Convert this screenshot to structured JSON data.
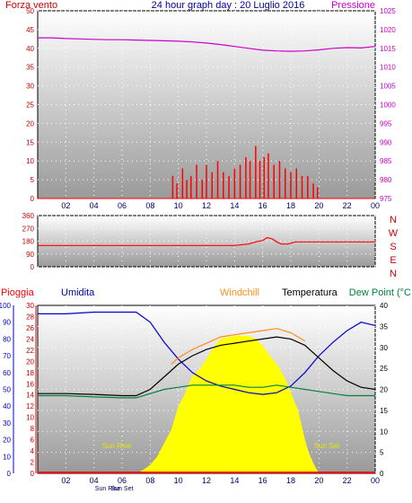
{
  "header": {
    "left_label": "Forza vento",
    "title": "24 hour graph day : 20 Luglio 2016",
    "right_label": "Pressione"
  },
  "middle": {
    "compass": [
      "N",
      "W",
      "S",
      "E",
      "N"
    ]
  },
  "bottom_header": {
    "pioggia": "Pioggia",
    "umidita": "Umidita",
    "windchill": "Windchill",
    "temperatura": "Temperatura",
    "dewpoint": "Dew Point (°C"
  },
  "colors": {
    "wind": "#ff0000",
    "pressure": "#cc00cc",
    "direction": "#ff0000",
    "humidity": "#0000cc",
    "windchill": "#ff8c1a",
    "temperature": "#000000",
    "dewpoint": "#008040",
    "solar": "#ffff00",
    "rain": "#ff0000"
  },
  "chart_data": [
    {
      "type": "line",
      "name": "wind-pressure",
      "x_ticks": [
        "02",
        "04",
        "06",
        "08",
        "10",
        "12",
        "14",
        "16",
        "18",
        "20",
        "22",
        "00"
      ],
      "y_left": {
        "ticks": [
          "0",
          "5",
          "10",
          "15",
          "20",
          "25",
          "30",
          "35",
          "40",
          "45",
          "50"
        ],
        "ylim": [
          0,
          50
        ]
      },
      "y_right": {
        "ticks": [
          "975",
          "980",
          "985",
          "990",
          "995",
          "1000",
          "1005",
          "1010",
          "1015",
          "1020",
          "1025"
        ],
        "ylim": [
          975,
          1025
        ]
      },
      "series": [
        {
          "axis": "right",
          "x": [
            0,
            1,
            2,
            3,
            4,
            5,
            6,
            7,
            8,
            9,
            10,
            11,
            12,
            13,
            14,
            15,
            16,
            17,
            18,
            19,
            20,
            21,
            22,
            23,
            24
          ],
          "values": [
            1017.8,
            1017.8,
            1017.6,
            1017.5,
            1017.4,
            1017.3,
            1017.3,
            1017.2,
            1017.1,
            1017.0,
            1016.9,
            1016.7,
            1016.4,
            1016.0,
            1015.5,
            1015.0,
            1014.5,
            1014.3,
            1014.2,
            1014.3,
            1014.6,
            1015.0,
            1015.2,
            1015.1,
            1015.5
          ]
        },
        {
          "axis": "left",
          "x": [
            9.6,
            9.9,
            10.3,
            10.6,
            10.9,
            11.3,
            11.7,
            12.0,
            12.4,
            12.8,
            13.2,
            13.6,
            14.0,
            14.4,
            14.8,
            15.1,
            15.5,
            15.8,
            16.1,
            16.4,
            16.8,
            17.2,
            17.6,
            18.0,
            18.4,
            18.8,
            19.2,
            19.6,
            19.9
          ],
          "values": [
            6,
            4,
            8,
            5,
            6,
            9,
            5,
            9,
            7,
            10,
            7,
            6,
            8,
            9,
            11,
            10,
            14,
            10,
            11,
            12,
            9,
            10,
            8,
            7,
            8,
            6,
            6,
            4,
            3
          ]
        }
      ]
    },
    {
      "type": "line",
      "name": "wind-direction",
      "x_ticks": [
        "02",
        "04",
        "06",
        "08",
        "10",
        "12",
        "14",
        "16",
        "18",
        "20",
        "22",
        "00"
      ],
      "y_left": {
        "ticks": [
          "0",
          "90",
          "180",
          "270",
          "360"
        ],
        "ylim": [
          0,
          360
        ]
      },
      "series": [
        {
          "x": [
            0,
            14,
            15.0,
            15.5,
            16.0,
            16.3,
            16.7,
            17.0,
            17.3,
            17.8,
            18.3,
            24
          ],
          "values": [
            150,
            150,
            160,
            175,
            185,
            205,
            195,
            175,
            160,
            160,
            175,
            175
          ]
        }
      ]
    },
    {
      "type": "line",
      "name": "temperature-humidity",
      "x_ticks": [
        "02",
        "04",
        "06",
        "08",
        "10",
        "12",
        "14",
        "16",
        "18",
        "20",
        "22",
        "00"
      ],
      "y_humidity": {
        "ticks": [
          "0",
          "10",
          "20",
          "30",
          "40",
          "50",
          "60",
          "70",
          "80",
          "90",
          "100"
        ],
        "ylim": [
          0,
          100
        ]
      },
      "y_rain": {
        "ticks": [
          "0",
          "2",
          "4",
          "6",
          "8",
          "10",
          "12",
          "14",
          "16",
          "18",
          "20",
          "22",
          "24",
          "26",
          "28",
          "30"
        ],
        "ylim": [
          0,
          30
        ]
      },
      "y_temp": {
        "ticks": [
          "0",
          "5",
          "10",
          "15",
          "20",
          "25",
          "30",
          "35",
          "40"
        ],
        "ylim": [
          0,
          40
        ]
      },
      "annotations": [
        "Sun Rise",
        "Sun Set",
        "Sun Rise",
        "Sun Set"
      ],
      "series": [
        {
          "axis": "humidity",
          "x": [
            0,
            2,
            4,
            6,
            7,
            8,
            9,
            10,
            11,
            12,
            13,
            14,
            15,
            16,
            17,
            18,
            19,
            20,
            21,
            22,
            23,
            24
          ],
          "values": [
            95,
            95,
            96,
            96,
            96,
            90,
            78,
            68,
            60,
            55,
            52,
            50,
            48,
            47,
            48,
            52,
            60,
            70,
            78,
            85,
            90,
            88
          ]
        },
        {
          "axis": "temp",
          "x": [
            0,
            2,
            4,
            6,
            7,
            8,
            9,
            10,
            11,
            12,
            13,
            14,
            15,
            16,
            17,
            18,
            19,
            20,
            21,
            22,
            23,
            24
          ],
          "values": [
            19.0,
            19.0,
            18.8,
            18.5,
            18.5,
            20.0,
            23.0,
            26.0,
            28.0,
            29.5,
            30.5,
            31.0,
            31.5,
            32.0,
            32.5,
            32.0,
            30.5,
            27.5,
            24.5,
            22.0,
            20.5,
            20.0
          ]
        },
        {
          "axis": "temp",
          "x": [
            9.5,
            10,
            11,
            12,
            13,
            14,
            15,
            16,
            17,
            18,
            19
          ],
          "values": [
            26.0,
            27.5,
            29.5,
            31.0,
            32.5,
            33.0,
            33.5,
            34.0,
            34.5,
            33.5,
            31.5
          ]
        },
        {
          "axis": "temp",
          "x": [
            0,
            2,
            4,
            6,
            7,
            8,
            9,
            10,
            11,
            12,
            13,
            14,
            15,
            16,
            17,
            18,
            19,
            20,
            21,
            22,
            23,
            24
          ],
          "values": [
            18.5,
            18.5,
            18.2,
            18.0,
            18.0,
            19.0,
            20.0,
            20.5,
            21.0,
            21.0,
            21.0,
            21.0,
            20.5,
            20.5,
            21.0,
            20.5,
            20.0,
            19.5,
            19.0,
            18.5,
            18.5,
            18.5
          ]
        },
        {
          "axis": "humidity",
          "x": [
            0,
            7.0,
            7.5,
            8.0,
            8.5,
            9.0,
            9.5,
            10.0,
            10.5,
            11.0,
            11.5,
            12.0,
            12.5,
            13.0,
            14.0,
            15.0,
            15.5,
            16.0,
            16.5,
            17.0,
            17.5,
            18.0,
            18.5,
            19.0,
            19.3,
            19.6,
            20.0,
            24
          ],
          "values": [
            0,
            0,
            2,
            5,
            10,
            18,
            26,
            40,
            48,
            58,
            62,
            68,
            75,
            80,
            82,
            82,
            80,
            76,
            70,
            65,
            58,
            48,
            38,
            20,
            12,
            6,
            0,
            0
          ]
        }
      ]
    }
  ]
}
